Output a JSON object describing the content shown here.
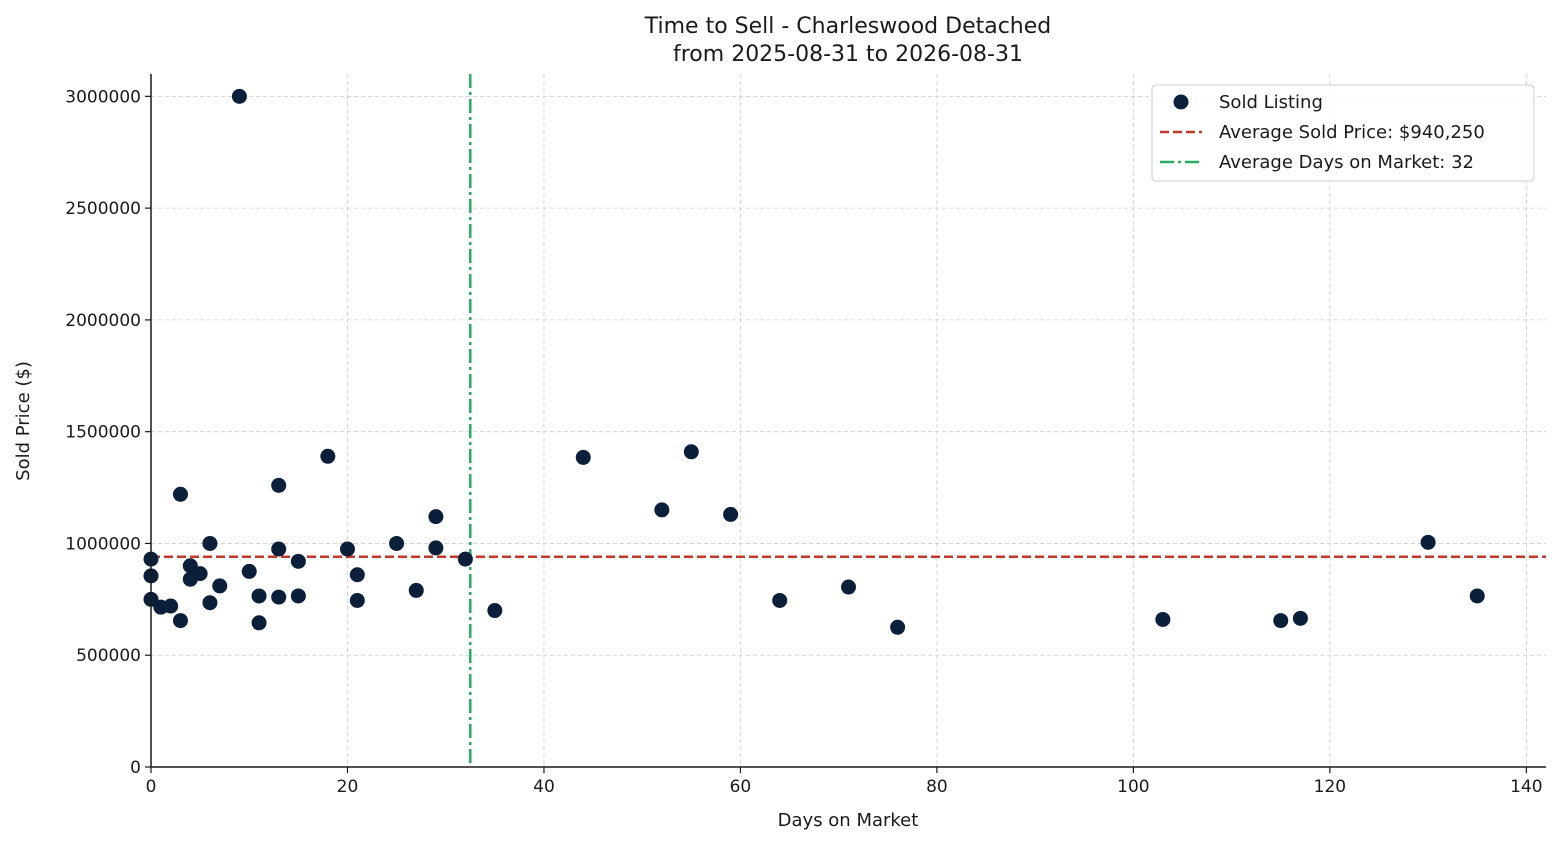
{
  "chart_data": {
    "type": "scatter",
    "title": [
      "Time to Sell - Charleswood Detached",
      "from 2025-08-31 to 2026-08-31"
    ],
    "xlabel": "Days on Market",
    "ylabel": "Sold Price ($)",
    "xlim": [
      0,
      142
    ],
    "ylim": [
      0,
      3100000
    ],
    "xticks": [
      0,
      20,
      40,
      60,
      80,
      100,
      120,
      140
    ],
    "xtick_labels": [
      "0",
      "20",
      "40",
      "60",
      "80",
      "100",
      "120",
      "140"
    ],
    "yticks": [
      0,
      500000,
      1000000,
      1500000,
      2000000,
      2500000,
      3000000
    ],
    "ytick_labels": [
      "0",
      "500000",
      "1000000",
      "1500000",
      "2000000",
      "2500000",
      "3000000"
    ],
    "grid": true,
    "legend_position": "top-right",
    "colors": {
      "points": "#0b1f3a",
      "avg_price_line": "#c0392b",
      "avg_days_line": "#27ae60",
      "axis": "#1a1a1a",
      "grid": "#cccccc"
    },
    "series": [
      {
        "name": "Sold Listing",
        "points": [
          [
            0,
            930000
          ],
          [
            0,
            855000
          ],
          [
            0,
            750000
          ],
          [
            1,
            715000
          ],
          [
            2,
            720000
          ],
          [
            3,
            1220000
          ],
          [
            3,
            655000
          ],
          [
            4,
            900000
          ],
          [
            4,
            840000
          ],
          [
            5,
            865000
          ],
          [
            6,
            1000000
          ],
          [
            6,
            735000
          ],
          [
            7,
            810000
          ],
          [
            9,
            3000000
          ],
          [
            10,
            875000
          ],
          [
            11,
            765000
          ],
          [
            11,
            645000
          ],
          [
            13,
            1260000
          ],
          [
            13,
            975000
          ],
          [
            13,
            760000
          ],
          [
            15,
            920000
          ],
          [
            15,
            765000
          ],
          [
            18,
            1390000
          ],
          [
            20,
            975000
          ],
          [
            21,
            860000
          ],
          [
            21,
            745000
          ],
          [
            25,
            1000000
          ],
          [
            27,
            790000
          ],
          [
            29,
            1120000
          ],
          [
            29,
            980000
          ],
          [
            32,
            930000
          ],
          [
            35,
            700000
          ],
          [
            44,
            1385000
          ],
          [
            52,
            1150000
          ],
          [
            55,
            1410000
          ],
          [
            59,
            1130000
          ],
          [
            64,
            745000
          ],
          [
            71,
            805000
          ],
          [
            76,
            625000
          ],
          [
            103,
            660000
          ],
          [
            115,
            655000
          ],
          [
            117,
            665000
          ],
          [
            130,
            1005000
          ],
          [
            135,
            765000
          ]
        ]
      }
    ],
    "reference_lines": [
      {
        "name": "Average Sold Price: $940,250",
        "orientation": "horizontal",
        "value": 940250,
        "style": "dashed"
      },
      {
        "name": "Average Days on Market: 32",
        "orientation": "vertical",
        "value": 32.5,
        "style": "dashdot"
      }
    ]
  }
}
